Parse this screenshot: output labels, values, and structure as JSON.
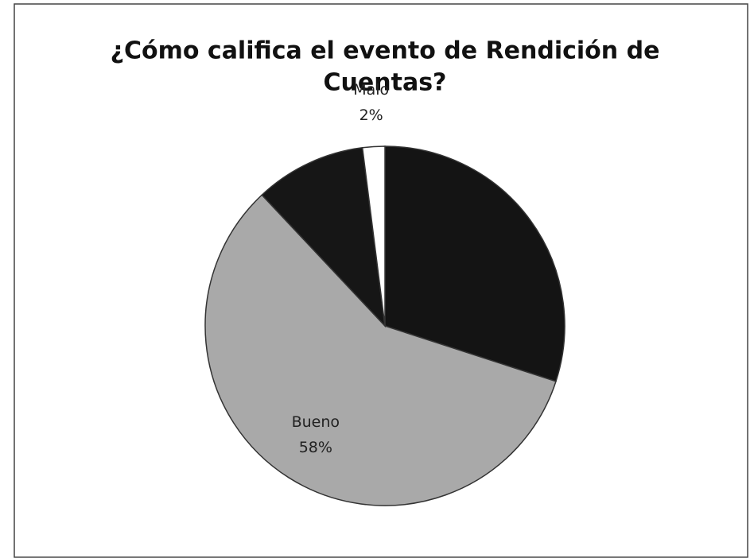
{
  "chart_data": {
    "type": "pie",
    "title": [
      "¿Cómo califica el evento de Rendición de",
      "Cuentas?"
    ],
    "categories": [
      null,
      "Bueno",
      null,
      "Malo"
    ],
    "values": [
      30,
      58,
      10,
      2
    ],
    "value_labels": [
      null,
      "58%",
      null,
      "2%"
    ],
    "colors": [
      "#141414",
      "#a9a9a9",
      "#161616",
      "#ffffff"
    ]
  }
}
